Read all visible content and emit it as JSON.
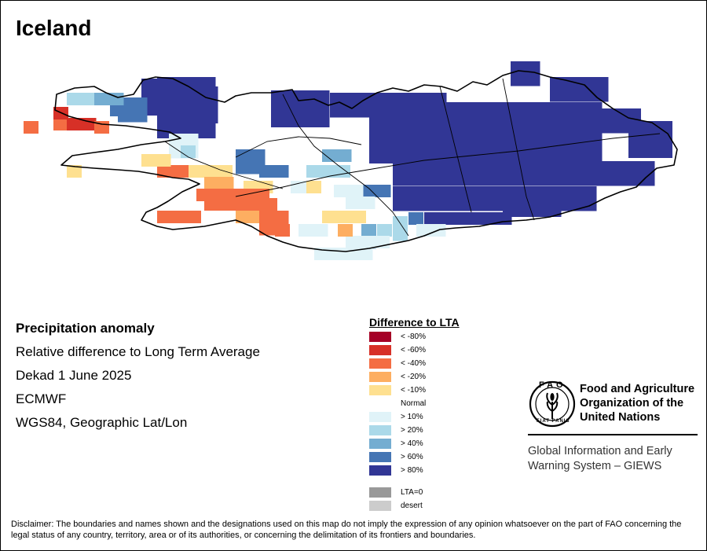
{
  "title": "Iceland",
  "info": {
    "heading": "Precipitation anomaly",
    "line1": "Relative difference to Long Term Average",
    "line2": "Dekad 1 June 2025",
    "line3": "ECMWF",
    "line4": "WGS84, Geographic Lat/Lon"
  },
  "legend": {
    "title": "Difference to LTA",
    "items": [
      {
        "label": "< -80%",
        "color": "#a50026"
      },
      {
        "label": "< -60%",
        "color": "#d73027"
      },
      {
        "label": "< -40%",
        "color": "#f46d43"
      },
      {
        "label": "< -20%",
        "color": "#fdae61"
      },
      {
        "label": "< -10%",
        "color": "#fee090"
      },
      {
        "label": "Normal",
        "color": "#ffffff"
      },
      {
        "label": "> 10%",
        "color": "#e0f3f8"
      },
      {
        "label": "> 20%",
        "color": "#abd9e9"
      },
      {
        "label": "> 40%",
        "color": "#74add1"
      },
      {
        "label": "> 60%",
        "color": "#4575b4"
      },
      {
        "label": "> 80%",
        "color": "#313695"
      }
    ],
    "extra": [
      {
        "label": "LTA=0",
        "color": "#999999"
      },
      {
        "label": "desert",
        "color": "#cccccc"
      }
    ]
  },
  "fao": {
    "line1": "Food and Agriculture",
    "line2": "Organization of the",
    "line3": "United Nations",
    "emblem_text": "FAO",
    "motto": "FIAT PANIS",
    "giews1": "Global Information and Early",
    "giews2": "Warning System – GIEWS"
  },
  "disclaimer": "Disclaimer: The boundaries and names shown and the designations used on this map do not imply the expression of any opinion whatsoever on the part of FAO concerning the legal status of any country, territory, area or of its authorities, or concerning the delimitation of its frontiers and boundaries."
}
